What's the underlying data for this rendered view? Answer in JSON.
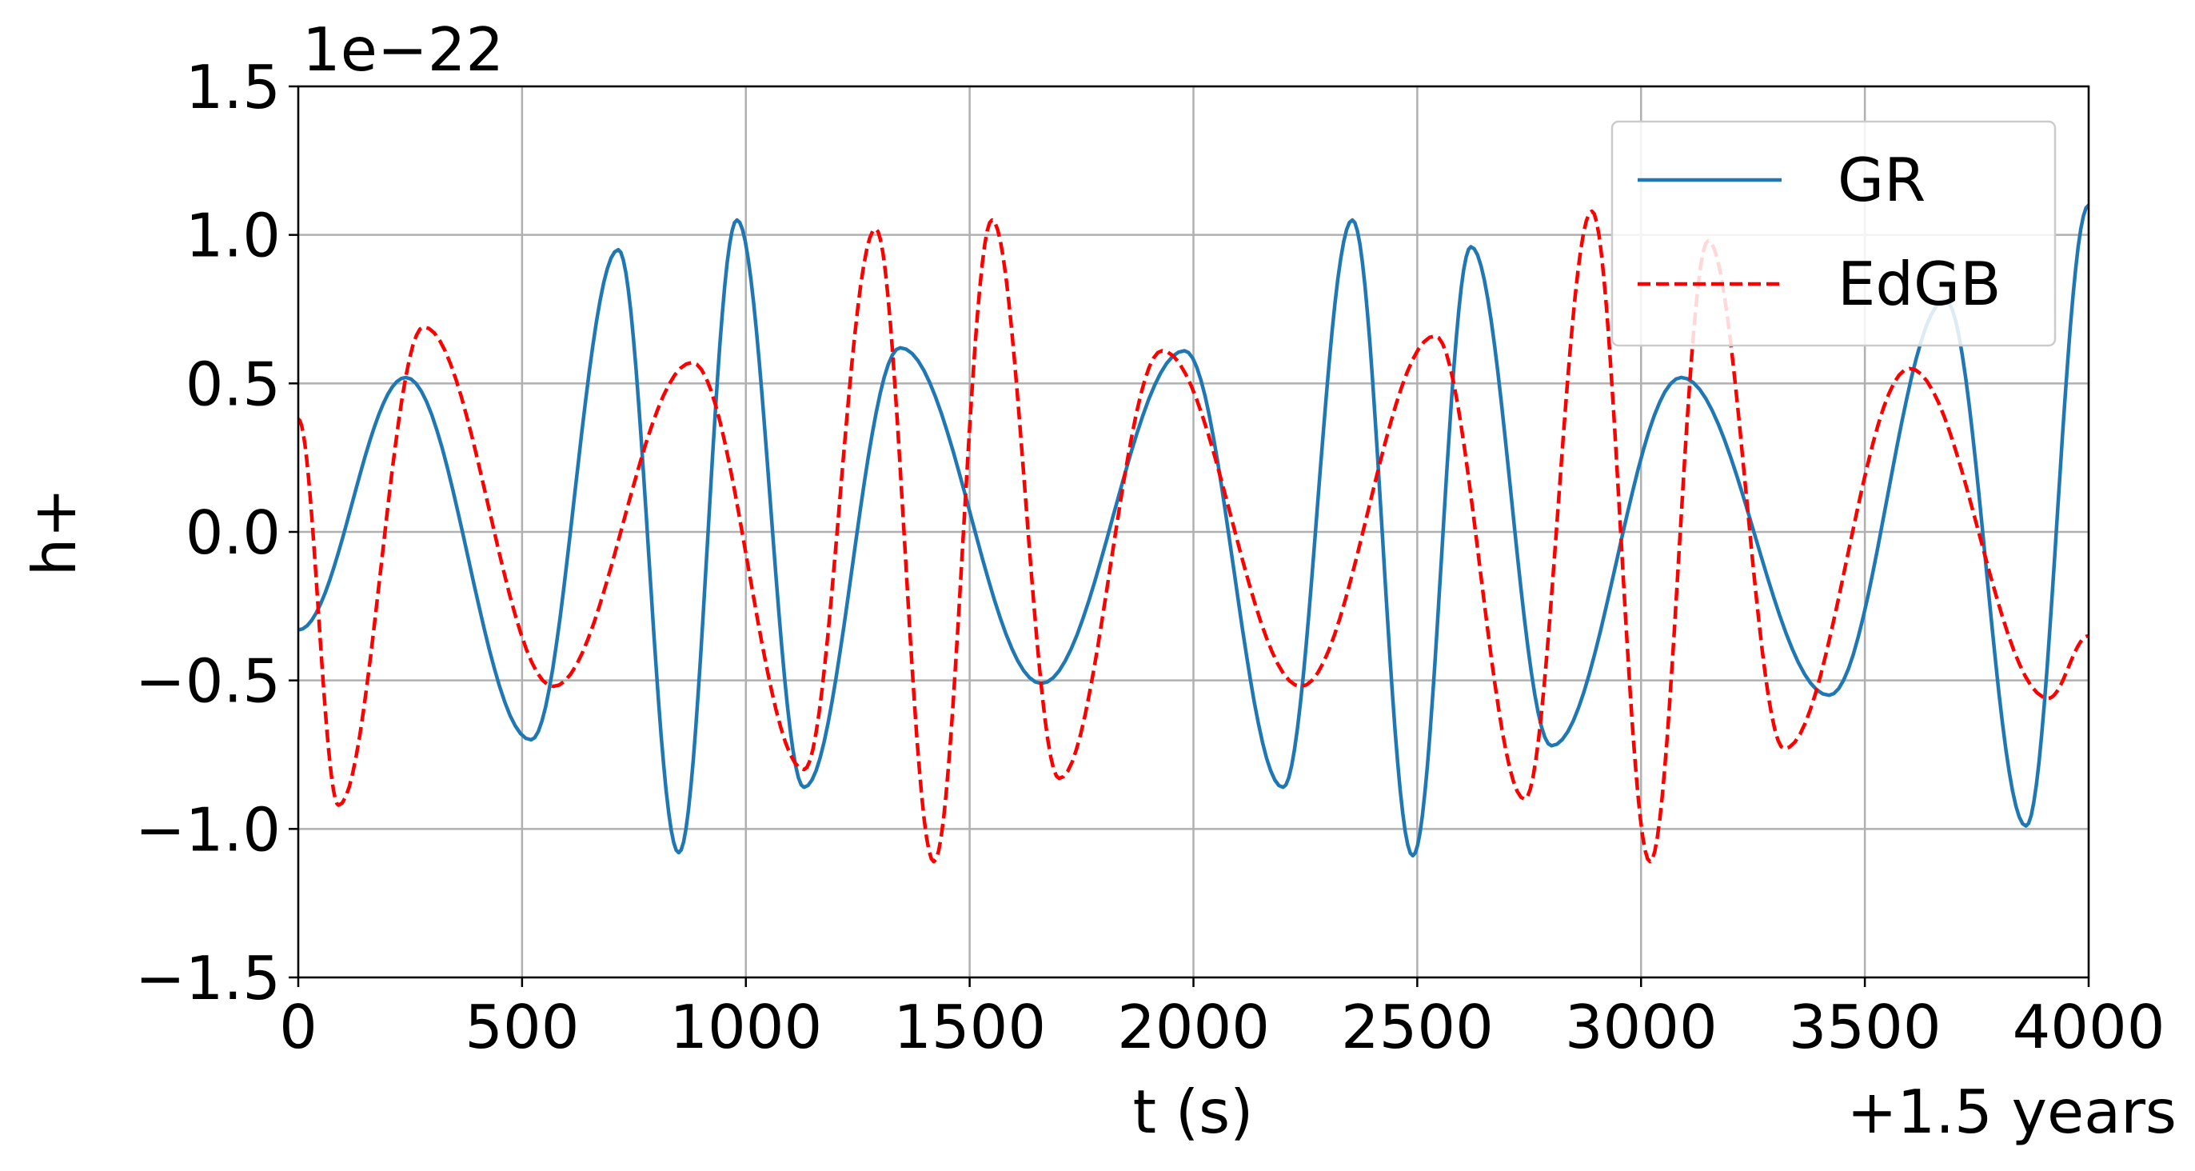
{
  "chart_data": {
    "type": "line",
    "xlabel": "t (s)",
    "ylabel": "h+",
    "x_offset_label": "+1.5 years",
    "y_scale_label": "1e−22",
    "xlim": [
      0,
      4000
    ],
    "ylim": [
      -1.5,
      1.5
    ],
    "x_ticks": [
      0,
      500,
      1000,
      1500,
      2000,
      2500,
      3000,
      3500,
      4000
    ],
    "x_tick_labels": [
      "0",
      "500",
      "1000",
      "1500",
      "2000",
      "2500",
      "3000",
      "3500",
      "4000"
    ],
    "y_ticks": [
      -1.5,
      -1.0,
      -0.5,
      0.0,
      0.5,
      1.0,
      1.5
    ],
    "y_tick_labels": [
      "−1.5",
      "−1.0",
      "−0.5",
      "0.0",
      "0.5",
      "1.0",
      "1.5"
    ],
    "grid": true,
    "legend_position": "top-right",
    "series": [
      {
        "name": "GR",
        "color": "#1f77b4",
        "style": "solid",
        "x": [
          0,
          240,
          520,
          715,
          850,
          980,
          1130,
          1345,
          1660,
          1980,
          2200,
          2355,
          2490,
          2620,
          2800,
          3090,
          3420,
          3680,
          3860,
          4000
        ],
        "y": [
          -0.33,
          0.52,
          -0.7,
          0.95,
          -1.08,
          1.05,
          -0.86,
          0.62,
          -0.51,
          0.61,
          -0.86,
          1.05,
          -1.09,
          0.96,
          -0.72,
          0.52,
          -0.55,
          0.78,
          -0.99,
          1.1
        ]
      },
      {
        "name": "EdGB",
        "color": "#ff0000",
        "style": "dashed",
        "x": [
          0,
          90,
          280,
          570,
          880,
          1130,
          1290,
          1420,
          1550,
          1700,
          1930,
          2240,
          2540,
          2740,
          2890,
          3020,
          3150,
          3320,
          3600,
          3910,
          4000
        ],
        "y": [
          0.38,
          -0.92,
          0.69,
          -0.52,
          0.57,
          -0.8,
          1.02,
          -1.11,
          1.05,
          -0.83,
          0.61,
          -0.52,
          0.66,
          -0.9,
          1.08,
          -1.11,
          0.98,
          -0.73,
          0.55,
          -0.56,
          -0.35
        ]
      }
    ]
  }
}
